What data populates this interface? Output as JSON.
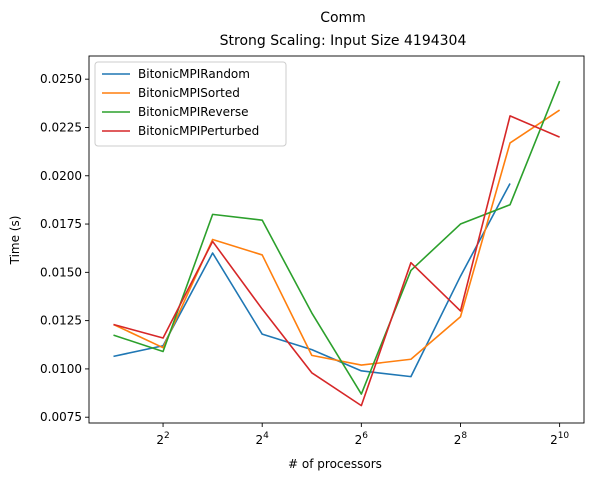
{
  "chart_data": {
    "type": "line",
    "title": "Comm",
    "subtitle": "Strong Scaling: Input Size 4194304",
    "xlabel": "# of processors",
    "ylabel": "Time (s)",
    "x_scale": "log2",
    "x": [
      2,
      4,
      8,
      16,
      32,
      64,
      128,
      256,
      512,
      1024
    ],
    "x_ticks": [
      {
        "value": 4,
        "base": "2",
        "exp": "2"
      },
      {
        "value": 16,
        "base": "2",
        "exp": "4"
      },
      {
        "value": 64,
        "base": "2",
        "exp": "6"
      },
      {
        "value": 256,
        "base": "2",
        "exp": "8"
      },
      {
        "value": 1024,
        "base": "2",
        "exp": "10"
      }
    ],
    "xlim": [
      1.42,
      1440
    ],
    "ylim": [
      0.0072,
      0.0262
    ],
    "y_ticks": [
      {
        "value": 0.0075,
        "label": "0.0075"
      },
      {
        "value": 0.01,
        "label": "0.0100"
      },
      {
        "value": 0.0125,
        "label": "0.0125"
      },
      {
        "value": 0.015,
        "label": "0.0150"
      },
      {
        "value": 0.0175,
        "label": "0.0175"
      },
      {
        "value": 0.02,
        "label": "0.0200"
      },
      {
        "value": 0.0225,
        "label": "0.0225"
      },
      {
        "value": 0.025,
        "label": "0.0250"
      }
    ],
    "grid": false,
    "legend_position": "top-left",
    "series": [
      {
        "name": "BitonicMPIRandom",
        "color": "#1f77b4",
        "values": [
          0.01065,
          0.0112,
          0.016,
          0.0118,
          0.011,
          0.0099,
          0.0096,
          0.0148,
          0.0196,
          null
        ]
      },
      {
        "name": "BitonicMPISorted",
        "color": "#ff7f0e",
        "values": [
          0.0123,
          0.0111,
          0.0167,
          0.0159,
          0.0107,
          0.0102,
          0.0105,
          0.0127,
          0.0217,
          0.0234
        ]
      },
      {
        "name": "BitonicMPIReverse",
        "color": "#2ca02c",
        "values": [
          0.01175,
          0.0109,
          0.018,
          0.0177,
          0.0129,
          0.0087,
          0.0151,
          0.0175,
          0.0185,
          0.0249
        ]
      },
      {
        "name": "BitonicMPIPerturbed",
        "color": "#d62728",
        "values": [
          0.0123,
          0.0116,
          0.0166,
          0.0131,
          0.0098,
          0.0081,
          0.0155,
          0.013,
          0.0231,
          0.022
        ]
      }
    ]
  }
}
